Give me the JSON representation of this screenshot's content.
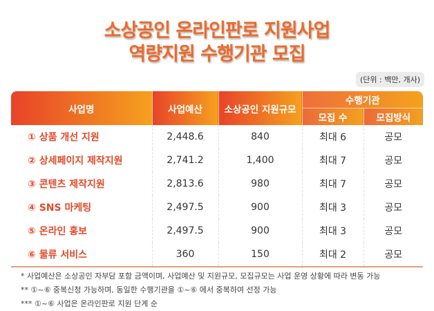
{
  "title": {
    "line1": "소상공인 온라인판로 지원사업",
    "line2": "역량지원 수행기관 모집"
  },
  "unit": "(단위 : 백만, 개사)",
  "headers": {
    "name": "사업명",
    "budget": "사업예산",
    "scale": "소상공인 지원규모",
    "agency": "수행기관",
    "count": "모집 수",
    "method": "모집방식"
  },
  "rows": [
    {
      "name": "① 상품 개선 지원",
      "budget": "2,448.6",
      "scale": "840",
      "count": "최대 6",
      "method": "공모"
    },
    {
      "name": "② 상세페이지 제작지원",
      "budget": "2,741.2",
      "scale": "1,400",
      "count": "최대 7",
      "method": "공모"
    },
    {
      "name": "③ 콘텐츠 제작지원",
      "budget": "2,813.6",
      "scale": "980",
      "count": "최대 7",
      "method": "공모"
    },
    {
      "name": "④ SNS 마케팅",
      "budget": "2,497.5",
      "scale": "900",
      "count": "최대 3",
      "method": "공모"
    },
    {
      "name": "⑤ 온라인 홍보",
      "budget": "2,497.5",
      "scale": "900",
      "count": "최대 3",
      "method": "공모"
    },
    {
      "name": "⑥ 물류 서비스",
      "budget": "360",
      "scale": "150",
      "count": "최대 2",
      "method": "공모"
    }
  ],
  "notes": [
    "* 사업예산은 소상공인 자부담 포함 금액이며, 사업예산 및 지원규모, 모집규모는 사업 운영 상황에 따라 변동 가능",
    "** ①~⑥ 중복신청 가능하며, 동일한 수행기관을 ①~⑥ 에서 중복하여 선정 가능",
    "*** ①~⑥ 사업은 온라인판로 지원 단계 순"
  ]
}
